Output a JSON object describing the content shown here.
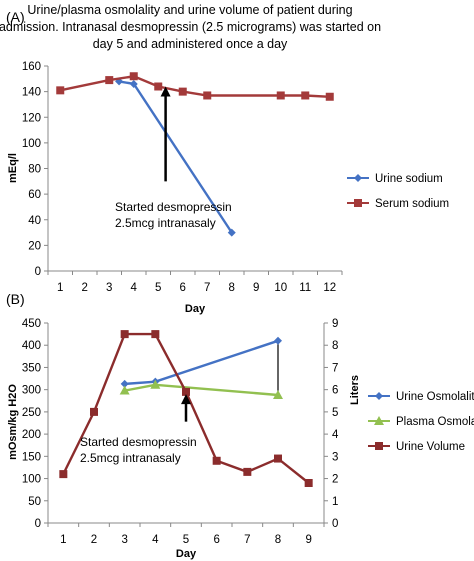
{
  "figure": {
    "title_lines": [
      "Urine/plasma osmolality and urine volume of patient during",
      "admission. Intranasal desmopressin (2.5 micrograms) was started on",
      "day 5 and administered once a day"
    ]
  },
  "chart_data": [
    {
      "panel_label": "(A)",
      "type": "line",
      "xlabel": "Day",
      "ylabel": "mEq/l",
      "categories": [
        1,
        2,
        3,
        4,
        5,
        6,
        7,
        8,
        9,
        10,
        11,
        12
      ],
      "ylim": [
        0,
        160
      ],
      "yticks": [
        0,
        20,
        40,
        60,
        80,
        100,
        120,
        140,
        160
      ],
      "grid": false,
      "legend_position": "right",
      "series": [
        {
          "name": "Urine sodium",
          "color": "#4472C4",
          "marker": "diamond",
          "points": [
            [
              3.4,
              148
            ],
            [
              4,
              146
            ],
            [
              8,
              30
            ]
          ]
        },
        {
          "name": "Serum sodium",
          "color": "#A33A3A",
          "marker": "square",
          "points": [
            [
              1,
              141
            ],
            [
              3,
              149
            ],
            [
              4,
              152
            ],
            [
              5,
              144
            ],
            [
              6,
              140
            ],
            [
              7,
              137
            ],
            [
              10,
              137
            ],
            [
              11,
              137
            ],
            [
              12,
              136
            ]
          ]
        }
      ],
      "annotation": {
        "lines": [
          "Started desmopressin",
          "2.5mcg intranasaly"
        ],
        "arrow_from": [
          5.3,
          70
        ],
        "arrow_to": [
          5.3,
          144
        ]
      }
    },
    {
      "panel_label": "(B)",
      "type": "line",
      "xlabel": "Day",
      "ylabel": "mOsm/kg H2O",
      "y2label": "Liters",
      "categories": [
        1,
        2,
        3,
        4,
        5,
        6,
        7,
        8,
        9
      ],
      "ylim": [
        0,
        450
      ],
      "yticks": [
        0,
        50,
        100,
        150,
        200,
        250,
        300,
        350,
        400,
        450
      ],
      "y2lim": [
        0,
        9
      ],
      "y2ticks": [
        0,
        1,
        2,
        3,
        4,
        5,
        6,
        7,
        8,
        9
      ],
      "grid": false,
      "legend_position": "right",
      "series": [
        {
          "name": "Urine Osmolality",
          "color": "#4472C4",
          "marker": "diamond",
          "axis": "left",
          "points": [
            [
              3,
              313
            ],
            [
              4,
              318
            ],
            [
              8,
              410
            ]
          ]
        },
        {
          "name": "Plasma Osmolality",
          "color": "#92C050",
          "marker": "triangle",
          "axis": "left",
          "points": [
            [
              3,
              298
            ],
            [
              4,
              311
            ],
            [
              8,
              288
            ]
          ]
        },
        {
          "name": "Urine Volume",
          "color": "#8B2C2C",
          "marker": "square",
          "axis": "right",
          "points": [
            [
              1,
              2.2
            ],
            [
              2,
              5
            ],
            [
              3,
              8.5
            ],
            [
              4,
              8.5
            ],
            [
              5,
              5.9
            ],
            [
              6,
              2.8
            ],
            [
              7,
              2.3
            ],
            [
              8,
              2.9
            ],
            [
              9,
              1.8
            ]
          ]
        }
      ],
      "annotation": {
        "lines": [
          "Started desmopressin",
          "2.5mcg intranasaly"
        ],
        "arrow_from": [
          5,
          228
        ],
        "arrow_to": [
          5,
          290
        ]
      },
      "connector": {
        "x": 8,
        "y_from": 410,
        "y_to": 288
      }
    }
  ]
}
